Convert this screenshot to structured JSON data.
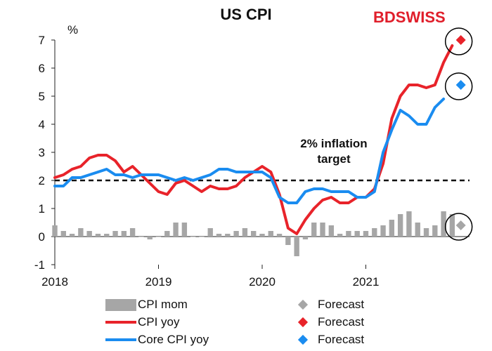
{
  "brand": {
    "part1": "BD",
    "part2": "SWISS"
  },
  "chart_data": {
    "type": "line",
    "title": "US CPI",
    "ylabel": "%",
    "ylim": [
      -1,
      7
    ],
    "yticks": [
      -1,
      0,
      1,
      2,
      3,
      4,
      5,
      6,
      7
    ],
    "xlim": [
      2018,
      2022.0
    ],
    "xticks": [
      {
        "label": "2018",
        "value": 2018
      },
      {
        "label": "2019",
        "value": 2019
      },
      {
        "label": "2020",
        "value": 2020
      },
      {
        "label": "2021",
        "value": 2021
      }
    ],
    "x_start": 2018,
    "x_step": 0.08333,
    "series": [
      {
        "name": "CPI mom",
        "kind": "bar",
        "color": "#a6a6a6",
        "values": [
          0.4,
          0.2,
          0.1,
          0.3,
          0.2,
          0.1,
          0.1,
          0.2,
          0.2,
          0.3,
          0.0,
          -0.1,
          0.0,
          0.2,
          0.5,
          0.5,
          0.0,
          0.0,
          0.3,
          0.1,
          0.1,
          0.2,
          0.3,
          0.2,
          0.1,
          0.2,
          0.1,
          -0.3,
          -0.7,
          -0.1,
          0.5,
          0.5,
          0.4,
          0.1,
          0.2,
          0.2,
          0.2,
          0.3,
          0.4,
          0.6,
          0.8,
          0.9,
          0.5,
          0.3,
          0.4,
          0.9,
          0.8
        ]
      },
      {
        "name": "CPI yoy",
        "kind": "line",
        "color": "#e8232a",
        "values": [
          2.1,
          2.2,
          2.4,
          2.5,
          2.8,
          2.9,
          2.9,
          2.7,
          2.3,
          2.5,
          2.2,
          1.9,
          1.6,
          1.5,
          1.9,
          2.0,
          1.8,
          1.6,
          1.8,
          1.7,
          1.7,
          1.8,
          2.1,
          2.3,
          2.5,
          2.3,
          1.5,
          0.3,
          0.1,
          0.6,
          1.0,
          1.3,
          1.4,
          1.2,
          1.2,
          1.4,
          1.4,
          1.7,
          2.6,
          4.2,
          5.0,
          5.4,
          5.4,
          5.3,
          5.4,
          6.2,
          6.8
        ]
      },
      {
        "name": "Core CPI yoy",
        "kind": "line",
        "color": "#1a8cf0",
        "values": [
          1.8,
          1.8,
          2.1,
          2.1,
          2.2,
          2.3,
          2.4,
          2.2,
          2.2,
          2.1,
          2.2,
          2.2,
          2.2,
          2.1,
          2.0,
          2.1,
          2.0,
          2.1,
          2.2,
          2.4,
          2.4,
          2.3,
          2.3,
          2.3,
          2.3,
          2.1,
          1.4,
          1.2,
          1.2,
          1.6,
          1.7,
          1.7,
          1.6,
          1.6,
          1.6,
          1.4,
          1.4,
          1.6,
          3.0,
          3.8,
          4.5,
          4.3,
          4.0,
          4.0,
          4.6,
          4.9
        ]
      }
    ],
    "forecasts": [
      {
        "name": "Forecast",
        "series": "CPI mom",
        "value": 0.4,
        "color": "#a6a6a6",
        "index": 47
      },
      {
        "name": "Forecast",
        "series": "CPI yoy",
        "value": 7.0,
        "color": "#e8232a",
        "index": 47
      },
      {
        "name": "Forecast",
        "series": "Core CPI yoy",
        "value": 5.4,
        "color": "#1a8cf0",
        "index": 47
      }
    ],
    "reference_line": {
      "value": 2,
      "label_line1": "2% inflation",
      "label_line2": "target"
    },
    "legend": [
      {
        "label": "CPI mom",
        "kind": "bar",
        "color": "#a6a6a6"
      },
      {
        "label": "Forecast",
        "kind": "diamond",
        "color": "#a6a6a6"
      },
      {
        "label": "CPI yoy",
        "kind": "line",
        "color": "#e8232a"
      },
      {
        "label": "Forecast",
        "kind": "diamond",
        "color": "#e8232a"
      },
      {
        "label": "Core CPI yoy",
        "kind": "line",
        "color": "#1a8cf0"
      },
      {
        "label": "Forecast",
        "kind": "diamond",
        "color": "#1a8cf0"
      }
    ]
  }
}
